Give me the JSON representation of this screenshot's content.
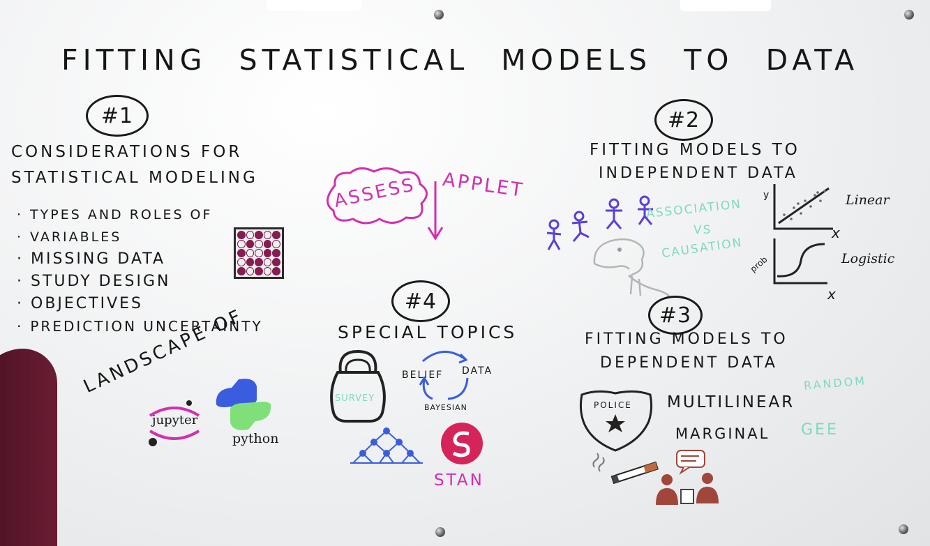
{
  "title": "FITTING STATISTICAL MODELS TO DATA",
  "section1": {
    "number": "#1",
    "heading_line1": "CONSIDERATIONS FOR",
    "heading_line2": "STATISTICAL MODELING",
    "bullets": [
      "TYPES AND ROLES OF",
      "VARIABLES",
      "MISSING DATA",
      "STUDY DESIGN",
      "OBJECTIVES",
      "PREDICTION UNCERTAINTY"
    ],
    "landscape_label": "LANDSCAPE OF",
    "jupyter_label": "jupyter",
    "python_label": "python"
  },
  "assess": {
    "cloud_text": "ASSESS",
    "applet_text": "APPLET"
  },
  "section2": {
    "number": "#2",
    "heading_line1": "FITTING MODELS TO",
    "heading_line2": "INDEPENDENT DATA",
    "association_line1": "ASSOCIATION",
    "association_line2": "VS",
    "association_line3": "CAUSATION",
    "linear_label": "Linear",
    "logistic_label": "Logistic",
    "y_axis_label": "y",
    "x_axis_label": "x",
    "prob_axis_label": "prob"
  },
  "section3": {
    "number": "#3",
    "heading_line1": "FITTING MODELS TO",
    "heading_line2": "DEPENDENT DATA",
    "police_label": "POLICE",
    "multilinear": "MULTILINEAR",
    "random": "RANDOM",
    "marginal": "MARGINAL",
    "gee": "GEE"
  },
  "section4": {
    "number": "#4",
    "heading": "SPECIAL TOPICS",
    "survey": "SURVEY",
    "belief": "BELIEF",
    "data": "DATA",
    "bayesian": "BAYESIAN",
    "stan": "STAN"
  },
  "colors": {
    "board": "#f2f3f4",
    "ink_black": "#161616",
    "ink_magenta": "#d42fae",
    "ink_purple": "#5a3fd6",
    "ink_teal": "#7fd9c3",
    "ink_blue": "#3a5de0",
    "stan_red": "#d6245a",
    "person_shirt": "#6a1d33"
  },
  "icons": [
    "kettlebell-icon",
    "police-badge-icon",
    "cigarette-icon",
    "dinosaur-icon",
    "python-logo-icon",
    "jupyter-logo-icon",
    "stan-logo-icon",
    "network-icon",
    "speech-bubble-icon",
    "grid-icon"
  ]
}
